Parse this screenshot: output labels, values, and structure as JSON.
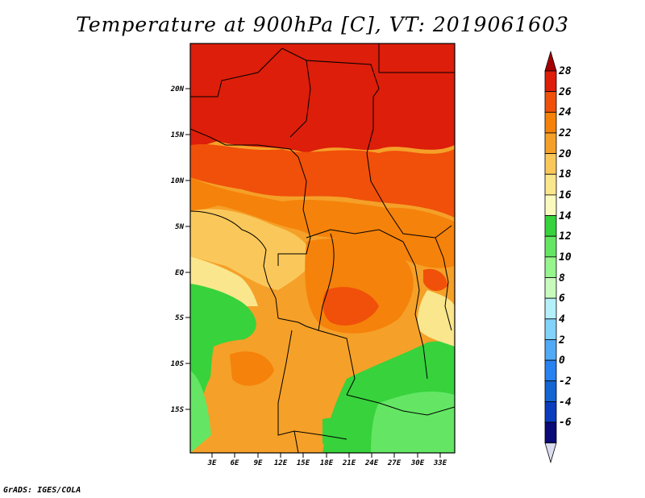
{
  "title": "Temperature at 900hPa [C], VT: 2019061603",
  "footer": "GrADS: IGES/COLA",
  "map": {
    "lat_labels": [
      "20N",
      "15N",
      "10N",
      "5N",
      "EQ",
      "5S",
      "10S",
      "15S"
    ],
    "lon_labels": [
      "3E",
      "6E",
      "9E",
      "12E",
      "15E",
      "18E",
      "21E",
      "24E",
      "27E",
      "30E",
      "33E"
    ]
  },
  "colorbar": {
    "labels": [
      "28",
      "26",
      "24",
      "22",
      "20",
      "18",
      "16",
      "14",
      "12",
      "10",
      "8",
      "6",
      "4",
      "2",
      "0",
      "-2",
      "-4",
      "-6"
    ],
    "colors": [
      "#a50000",
      "#dc1e0a",
      "#f0500a",
      "#f5820a",
      "#f5a028",
      "#fac85a",
      "#fae68c",
      "#fafabe",
      "#37d23c",
      "#64e664",
      "#96f58c",
      "#c8fabe",
      "#b4f0fa",
      "#82d2fa",
      "#50aaf5",
      "#2882f0",
      "#1464d2",
      "#0a3cbe",
      "#0a0a78",
      "#dcdcf0"
    ]
  }
}
